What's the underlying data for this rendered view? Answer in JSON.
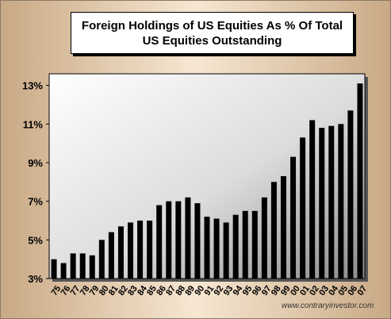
{
  "chart_data": {
    "type": "bar",
    "title": "Foreign Holdings of US Equities As % Of Total US Equities Outstanding",
    "categories": [
      "75",
      "76",
      "77",
      "78",
      "79",
      "80",
      "81",
      "82",
      "83",
      "84",
      "85",
      "86",
      "87",
      "88",
      "89",
      "90",
      "91",
      "92",
      "93",
      "94",
      "95",
      "96",
      "97",
      "98",
      "99",
      "00",
      "01",
      "02",
      "03",
      "04",
      "05",
      "06",
      "07"
    ],
    "values": [
      4.0,
      3.8,
      4.3,
      4.3,
      4.2,
      5.0,
      5.4,
      5.7,
      5.9,
      6.0,
      6.0,
      6.8,
      7.0,
      7.0,
      7.2,
      6.9,
      6.2,
      6.1,
      5.9,
      6.3,
      6.5,
      6.5,
      7.2,
      8.0,
      8.3,
      9.3,
      10.3,
      11.2,
      10.8,
      10.9,
      11.0,
      11.7,
      13.1
    ],
    "y_ticks": [
      "3%",
      "5%",
      "7%",
      "9%",
      "11%",
      "13%"
    ],
    "y_tick_values": [
      3,
      5,
      7,
      9,
      11,
      13
    ],
    "ylim": [
      3,
      13.6
    ],
    "xlabel": "",
    "ylabel": "",
    "grid": false,
    "bar_color": "#000000"
  },
  "watermark": "www.contraryinvestor.com",
  "colors": {
    "frame_gradient_edge": "#c9a985",
    "frame_gradient_center": "#f7e7d2",
    "plot_gradient_light": "#ffffff",
    "plot_gradient_dark": "#8c8c8c"
  }
}
